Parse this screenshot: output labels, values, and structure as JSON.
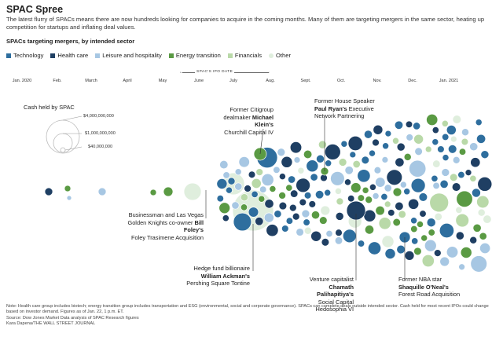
{
  "title": "SPAC Spree",
  "subtitle": "The latest flurry of SPACs means there are now hundreds looking for companies to acquire in the coming months. Many of them are targeting mergers in the same sector, heating up competition for startups and inflating deal values.",
  "heading": "SPACs targeting mergers, by intended sector",
  "legend": [
    {
      "label": "Technology",
      "color": "#2e6e9e"
    },
    {
      "label": "Health care",
      "color": "#1f3f63"
    },
    {
      "label": "Leisure and hospitality",
      "color": "#a7c7e3"
    },
    {
      "label": "Energy transition",
      "color": "#5a9a43"
    },
    {
      "label": "Financials",
      "color": "#b9d9a8"
    },
    {
      "label": "Other",
      "color": "#dfeedd"
    }
  ],
  "axis_title": "SPAC'S IPO DATE",
  "cash_legend": {
    "title": "Cash held by SPAC",
    "values": [
      "$4,000,000,000",
      "$1,000,000,000",
      "$40,000,000"
    ]
  },
  "annotations": {
    "klein": {
      "line1": "Former Citigroup",
      "line2_pre": "dealmaker ",
      "line2_bold": "Michael Klein's",
      "line3": "Churchill Capital IV"
    },
    "ryan": {
      "line1": "Former House Speaker",
      "line2_bold": "Paul Ryan's",
      "line2_post": " Executive",
      "line3": "Network Partnering"
    },
    "foley": {
      "line1": "Businessman and Las Vegas",
      "line2_pre": "Golden Knights co-owner ",
      "line2_bold": "Bill Foley's",
      "line3": "Foley Trasimene Acquisition"
    },
    "ackman": {
      "line1": "Hedge fund billionaire",
      "line2_bold": "William Ackman's",
      "line3": "Pershing Square Tontine"
    },
    "palihapitiya": {
      "line1": "Venture capitalist",
      "line2_bold": "Chamath Palihapitiya's",
      "line3": "Social Capital Hedosophia VI"
    },
    "oneal": {
      "line1": "Former NBA star",
      "line2_bold": "Shaquille O'Neal's",
      "line3": "Forest Road Acquisition"
    }
  },
  "footer": {
    "note": "Note: Health care group includes biotech; energy transition group includes transportation and ESG (environmental, social and corporate governance). SPACs can complete deals outside intended sector. Cash held for most recent IPOs could change based on investor demand. Figures as of Jan. 22, 1 p.m. ET.",
    "source": "Source: Dow Jones Market Data analysis of SPAC Research figures",
    "credit": "Kara Dapena/THE WALL STREET JOURNAL"
  },
  "chart_data": {
    "type": "scatter",
    "title": "SPACs targeting mergers, by intended sector",
    "xlabel": "SPAC'S IPO DATE",
    "x_ticks": [
      "Jan. 2020",
      "Feb.",
      "March",
      "April",
      "May",
      "June",
      "July",
      "Aug.",
      "Sept.",
      "Oct.",
      "Nov.",
      "Dec.",
      "Jan. 2021"
    ],
    "size_legend": [
      "$4,000,000,000",
      "$1,000,000,000",
      "$40,000,000"
    ],
    "highlighted": [
      {
        "month": "July",
        "sector": "Energy transition",
        "label": "Michael Klein's Churchill Capital IV"
      },
      {
        "month": "Sept.",
        "sector": "Energy transition",
        "label": "Paul Ryan's Executive Network Partnering"
      },
      {
        "month": "June",
        "sector": "Financials",
        "label": "Bill Foley's Foley Trasimene Acquisition"
      },
      {
        "month": "July",
        "sector": "Other",
        "label": "William Ackman's Pershing Square Tontine"
      },
      {
        "month": "Oct.",
        "sector": "Health care",
        "label": "Chamath Palihapitiya's Social Capital Hedosophia VI"
      },
      {
        "month": "Nov.",
        "sector": "Technology",
        "label": "Shaquille O'Neal's Forest Road Acquisition"
      }
    ]
  }
}
